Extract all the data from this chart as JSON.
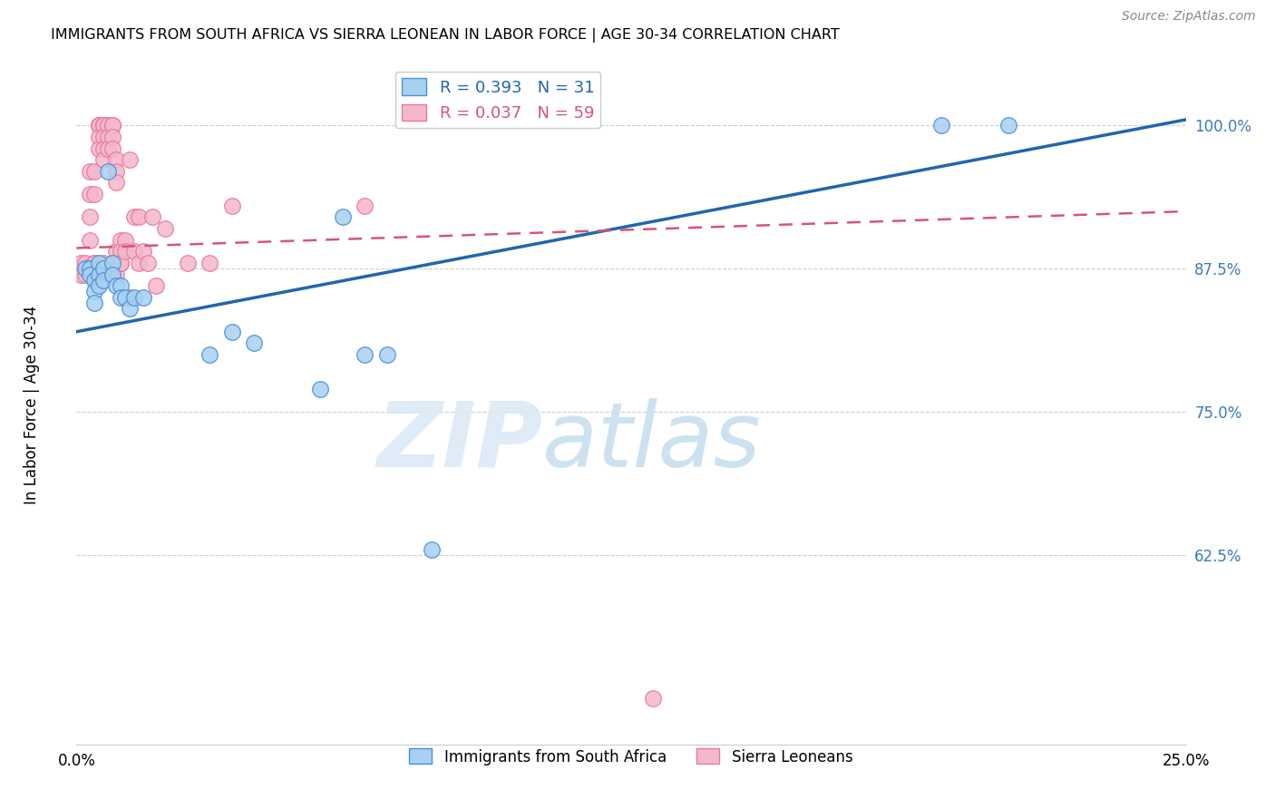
{
  "title": "IMMIGRANTS FROM SOUTH AFRICA VS SIERRA LEONEAN IN LABOR FORCE | AGE 30-34 CORRELATION CHART",
  "source": "Source: ZipAtlas.com",
  "ylabel": "In Labor Force | Age 30-34",
  "xlim": [
    0.0,
    0.25
  ],
  "ylim": [
    0.46,
    1.06
  ],
  "xticks": [
    0.0,
    0.05,
    0.1,
    0.15,
    0.2,
    0.25
  ],
  "xticklabels": [
    "0.0%",
    "",
    "",
    "",
    "",
    "25.0%"
  ],
  "yticks": [
    0.625,
    0.75,
    0.875,
    1.0
  ],
  "yticklabels": [
    "62.5%",
    "75.0%",
    "87.5%",
    "100.0%"
  ],
  "blue_r": 0.393,
  "blue_n": 31,
  "pink_r": 0.037,
  "pink_n": 59,
  "blue_color": "#a8d0f0",
  "pink_color": "#f5b8cb",
  "blue_edge_color": "#4a90d9",
  "pink_edge_color": "#e87aa0",
  "blue_line_color": "#2166ac",
  "pink_line_color": "#d6547a",
  "legend_blue_label": "Immigrants from South Africa",
  "legend_pink_label": "Sierra Leoneans",
  "watermark_zip": "ZIP",
  "watermark_atlas": "atlas",
  "blue_x": [
    0.002,
    0.003,
    0.003,
    0.004,
    0.004,
    0.004,
    0.005,
    0.005,
    0.005,
    0.006,
    0.006,
    0.007,
    0.008,
    0.008,
    0.009,
    0.01,
    0.01,
    0.011,
    0.012,
    0.013,
    0.015,
    0.03,
    0.035,
    0.04,
    0.055,
    0.06,
    0.065,
    0.07,
    0.08,
    0.195,
    0.21
  ],
  "blue_y": [
    0.875,
    0.875,
    0.87,
    0.865,
    0.855,
    0.845,
    0.88,
    0.87,
    0.86,
    0.875,
    0.865,
    0.96,
    0.88,
    0.87,
    0.86,
    0.86,
    0.85,
    0.85,
    0.84,
    0.85,
    0.85,
    0.8,
    0.82,
    0.81,
    0.77,
    0.92,
    0.8,
    0.8,
    0.63,
    1.0,
    1.0
  ],
  "pink_x": [
    0.001,
    0.001,
    0.002,
    0.002,
    0.003,
    0.003,
    0.003,
    0.003,
    0.004,
    0.004,
    0.004,
    0.004,
    0.004,
    0.005,
    0.005,
    0.005,
    0.005,
    0.005,
    0.006,
    0.006,
    0.006,
    0.006,
    0.006,
    0.006,
    0.007,
    0.007,
    0.007,
    0.007,
    0.008,
    0.008,
    0.008,
    0.008,
    0.009,
    0.009,
    0.009,
    0.009,
    0.009,
    0.01,
    0.01,
    0.01,
    0.01,
    0.011,
    0.011,
    0.012,
    0.012,
    0.013,
    0.013,
    0.014,
    0.014,
    0.015,
    0.016,
    0.017,
    0.018,
    0.02,
    0.025,
    0.03,
    0.035,
    0.065,
    0.13
  ],
  "pink_y": [
    0.87,
    0.88,
    0.87,
    0.88,
    0.92,
    0.9,
    0.96,
    0.94,
    0.88,
    0.88,
    0.96,
    0.94,
    0.87,
    1.0,
    1.0,
    1.0,
    0.99,
    0.98,
    1.0,
    1.0,
    0.99,
    0.98,
    0.97,
    0.88,
    1.0,
    0.99,
    0.98,
    0.87,
    1.0,
    1.0,
    0.99,
    0.98,
    0.97,
    0.96,
    0.95,
    0.89,
    0.87,
    0.9,
    0.89,
    0.88,
    0.88,
    0.9,
    0.89,
    0.97,
    0.85,
    0.92,
    0.89,
    0.88,
    0.92,
    0.89,
    0.88,
    0.92,
    0.86,
    0.91,
    0.88,
    0.88,
    0.93,
    0.93,
    0.5
  ],
  "blue_trend_x0": 0.0,
  "blue_trend_x1": 0.25,
  "blue_trend_y0": 0.82,
  "blue_trend_y1": 1.005,
  "pink_trend_x0": 0.0,
  "pink_trend_x1": 0.25,
  "pink_trend_y0": 0.893,
  "pink_trend_y1": 0.925
}
